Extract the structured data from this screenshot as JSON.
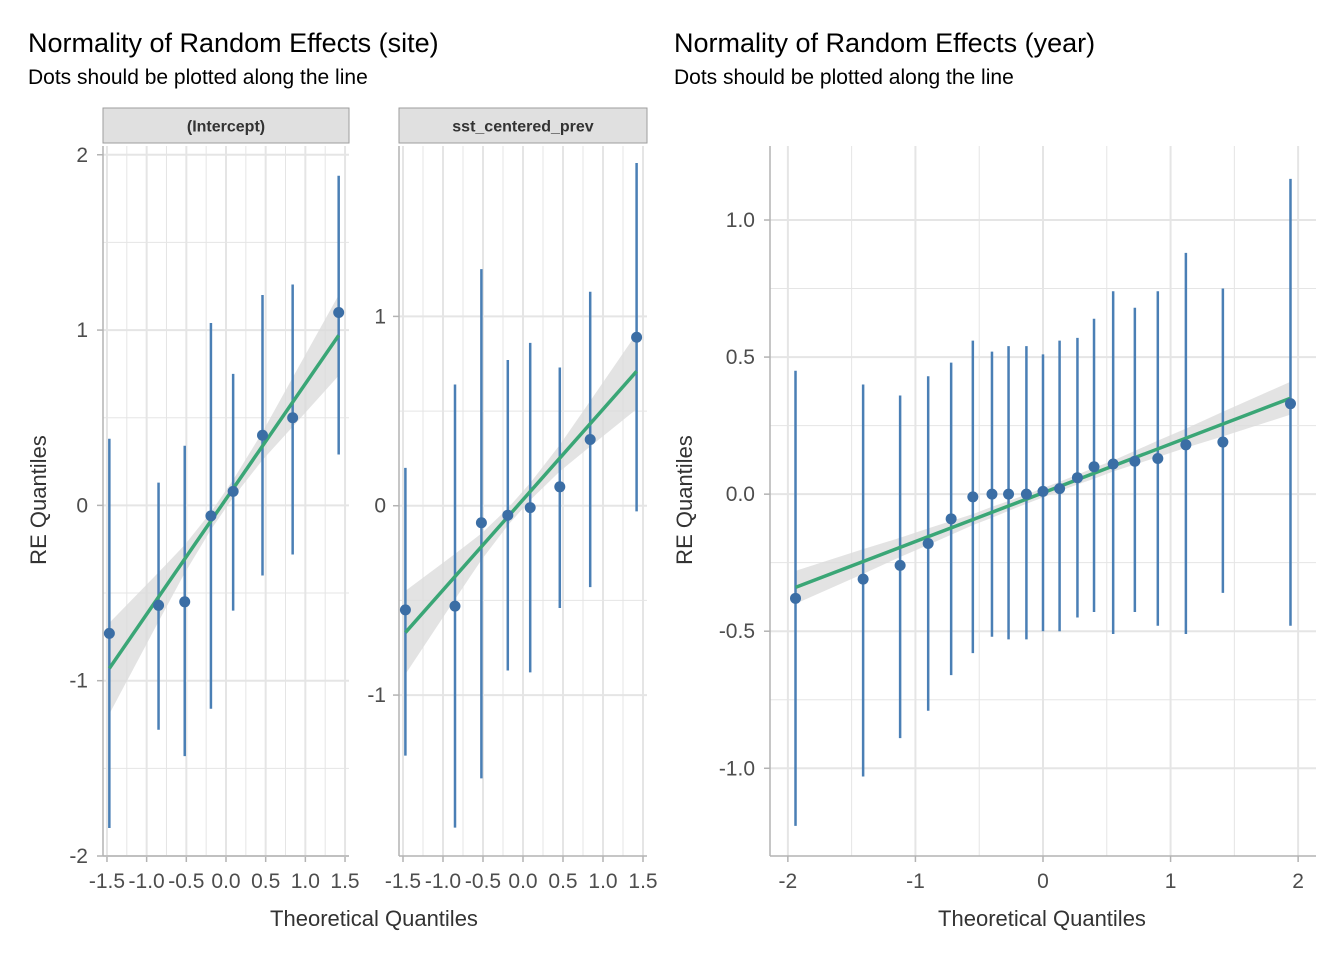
{
  "figure": {
    "left_title": "Normality of Random Effects (site)",
    "left_subtitle": "Dots should be plotted along the line",
    "right_title": "Normality of Random Effects (year)",
    "right_subtitle": "Dots should be plotted along the line",
    "x_axis_title": "Theoretical Quantiles",
    "y_axis_title": "RE Quantiles"
  },
  "colors": {
    "points": "#3b6ea5",
    "errorbars": "#4a7fb5",
    "fit_line": "#3aa676",
    "ribbon": "#d9d9d9",
    "grid": "#e5e5e5",
    "axis": "#b3b3b3"
  },
  "chart_data": [
    {
      "type": "scatter",
      "panel": "site",
      "strip": "(Intercept)",
      "xlabel": "Theoretical Quantiles",
      "ylabel": "RE Quantiles",
      "xlim": [
        -1.55,
        1.55
      ],
      "ylim": [
        -2.0,
        2.05
      ],
      "xticks": [
        -1.5,
        -1.0,
        -0.5,
        0.0,
        0.5,
        1.0,
        1.5
      ],
      "xtick_labels": [
        "-1.5",
        "-1.0",
        "-0.5",
        "0.0",
        "0.5",
        "1.0",
        "1.5"
      ],
      "yticks": [
        -2,
        -1,
        0,
        1,
        2
      ],
      "ytick_labels": [
        "-2",
        "-1",
        "0",
        "1",
        "2"
      ],
      "x": [
        -1.47,
        -0.85,
        -0.52,
        -0.19,
        0.09,
        0.46,
        0.84,
        1.42
      ],
      "y": [
        -0.73,
        -0.57,
        -0.55,
        -0.06,
        0.08,
        0.4,
        0.5,
        1.1
      ],
      "ymin": [
        -1.84,
        -1.28,
        -1.43,
        -1.16,
        -0.6,
        -0.4,
        -0.28,
        0.29
      ],
      "ymax": [
        0.38,
        0.13,
        0.34,
        1.04,
        0.75,
        1.2,
        1.26,
        1.88
      ],
      "fit": {
        "x": [
          -1.47,
          1.42
        ],
        "y": [
          -0.93,
          0.97
        ]
      },
      "band_halfwidth": [
        0.26,
        0.14,
        0.08,
        0.05,
        0.05,
        0.08,
        0.14,
        0.23
      ]
    },
    {
      "type": "scatter",
      "panel": "site",
      "strip": "sst_centered_prev",
      "xlabel": "Theoretical Quantiles",
      "ylabel": "",
      "xlim": [
        -1.55,
        1.55
      ],
      "ylim": [
        -1.85,
        1.9
      ],
      "xticks": [
        -1.5,
        -1.0,
        -0.5,
        0.0,
        0.5,
        1.0,
        1.5
      ],
      "xtick_labels": [
        "-1.5",
        "-1.0",
        "-0.5",
        "0.0",
        "0.5",
        "1.0",
        "1.5"
      ],
      "yticks": [
        -1,
        0,
        1
      ],
      "ytick_labels": [
        "-1",
        "0",
        "1"
      ],
      "x": [
        -1.47,
        -0.85,
        -0.52,
        -0.19,
        0.09,
        0.46,
        0.84,
        1.42
      ],
      "y": [
        -0.55,
        -0.53,
        -0.09,
        -0.05,
        -0.01,
        0.1,
        0.35,
        0.89
      ],
      "ymin": [
        -1.32,
        -1.7,
        -1.44,
        -0.87,
        -0.88,
        -0.54,
        -0.43,
        -0.03
      ],
      "ymax": [
        0.2,
        0.64,
        1.25,
        0.77,
        0.86,
        0.73,
        1.13,
        1.81
      ],
      "fit": {
        "x": [
          -1.47,
          1.42
        ],
        "y": [
          -0.67,
          0.71
        ]
      },
      "band_halfwidth": [
        0.22,
        0.12,
        0.07,
        0.045,
        0.045,
        0.07,
        0.12,
        0.2
      ]
    },
    {
      "type": "scatter",
      "panel": "year",
      "strip": "",
      "xlabel": "Theoretical Quantiles",
      "ylabel": "RE Quantiles",
      "xlim": [
        -2.14,
        2.14
      ],
      "ylim": [
        -1.32,
        1.27
      ],
      "xticks": [
        -2,
        -1,
        0,
        1,
        2
      ],
      "xtick_labels": [
        "-2",
        "-1",
        "0",
        "1",
        "2"
      ],
      "yticks": [
        -1.0,
        -0.5,
        0.0,
        0.5,
        1.0
      ],
      "ytick_labels": [
        "-1.0",
        "-0.5",
        "0.0",
        "0.5",
        "1.0"
      ],
      "x": [
        -1.94,
        -1.41,
        -1.12,
        -0.9,
        -0.72,
        -0.55,
        -0.4,
        -0.27,
        -0.13,
        0.0,
        0.13,
        0.27,
        0.4,
        0.55,
        0.72,
        0.9,
        1.12,
        1.41,
        1.94
      ],
      "y": [
        -0.38,
        -0.31,
        -0.26,
        -0.18,
        -0.09,
        -0.01,
        0.0,
        0.0,
        0.0,
        0.01,
        0.02,
        0.06,
        0.1,
        0.11,
        0.12,
        0.13,
        0.18,
        0.19,
        0.33
      ],
      "ymin": [
        -1.21,
        -1.03,
        -0.89,
        -0.79,
        -0.66,
        -0.58,
        -0.52,
        -0.53,
        -0.53,
        -0.5,
        -0.5,
        -0.45,
        -0.43,
        -0.51,
        -0.43,
        -0.48,
        -0.51,
        -0.36,
        -0.48
      ],
      "ymax": [
        0.45,
        0.4,
        0.36,
        0.43,
        0.48,
        0.56,
        0.52,
        0.54,
        0.54,
        0.51,
        0.56,
        0.57,
        0.64,
        0.74,
        0.68,
        0.74,
        0.88,
        0.75,
        1.15
      ],
      "fit": {
        "x": [
          -1.94,
          1.94
        ],
        "y": [
          -0.34,
          0.35
        ]
      },
      "band_halfwidth": [
        0.06,
        0.045,
        0.035,
        0.03,
        0.025,
        0.02,
        0.02,
        0.018,
        0.017,
        0.017,
        0.017,
        0.018,
        0.02,
        0.02,
        0.025,
        0.03,
        0.035,
        0.045,
        0.06
      ]
    }
  ]
}
